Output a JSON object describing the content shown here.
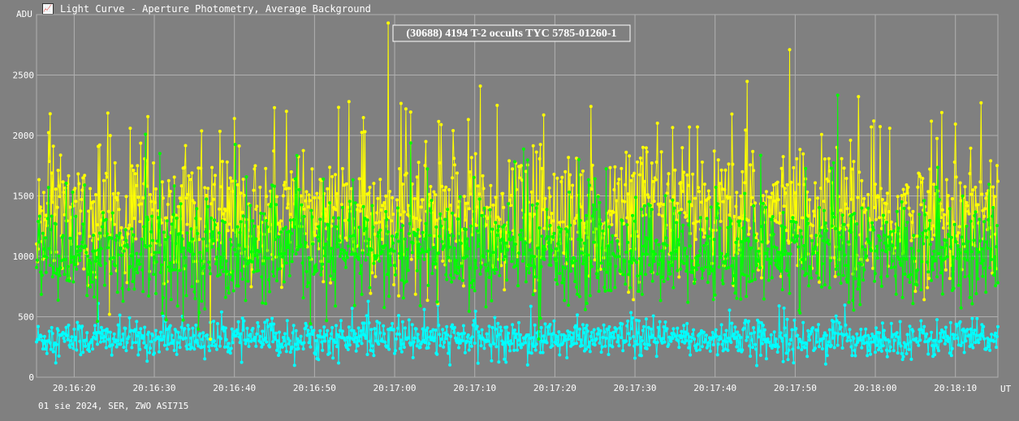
{
  "window": {
    "title": "Light Curve - Aperture Photometry, Average Background",
    "icon": "light-curve-app-icon"
  },
  "footer": {
    "text": "01 sie 2024, SER, ZWO ASI715"
  },
  "colors": {
    "background": "#808080",
    "grid": "#b0b0b0",
    "yellow": "#ffff00",
    "green": "#00ff00",
    "cyan": "#00ffff",
    "text": "#ffffff"
  },
  "chart_data": {
    "type": "line",
    "title": "(30688) 4194 T-2 occults TYC 5785-01260-1",
    "xlabel": "UT",
    "ylabel": "ADU",
    "ylim": [
      0,
      3000
    ],
    "xlim": [
      "20:16:15.3",
      "20:18:15.3"
    ],
    "y_ticks": [
      0,
      500,
      1000,
      1500,
      2000,
      2500
    ],
    "x_ticks": [
      "20:16:20",
      "20:16:30",
      "20:16:40",
      "20:16:50",
      "20:17:00",
      "20:17:10",
      "20:17:20",
      "20:17:30",
      "20:17:40",
      "20:17:50",
      "20:18:00",
      "20:18:10"
    ],
    "grid": true,
    "legend": "none",
    "sample_interval_s": 0.1,
    "series": [
      {
        "color": "#ffff00",
        "mean": 1330,
        "stddev": 270,
        "spikes": [
          {
            "t": "20:16:59.2",
            "value": 2930
          },
          {
            "t": "20:17:49.3",
            "value": 2710
          },
          {
            "t": "20:16:54.3",
            "value": 2280
          },
          {
            "t": "20:18:13.2",
            "value": 2270
          },
          {
            "t": "20:16:45.0",
            "value": 2230
          },
          {
            "t": "20:17:01.4",
            "value": 2220
          },
          {
            "t": "20:17:24.5",
            "value": 2240
          },
          {
            "t": "20:18:08.3",
            "value": 2190
          },
          {
            "t": "20:16:46.5",
            "value": 2200
          },
          {
            "t": "20:17:18.6",
            "value": 2170
          },
          {
            "t": "20:16:40.0",
            "value": 2140
          },
          {
            "t": "20:16:27.0",
            "value": 2060
          },
          {
            "t": "20:17:36.8",
            "value": 2070
          },
          {
            "t": "20:17:07.3",
            "value": 2040
          },
          {
            "t": "20:18:01.8",
            "value": 2060
          }
        ]
      },
      {
        "color": "#00ff00",
        "mean": 1030,
        "stddev": 210,
        "spikes": [
          {
            "t": "20:16:28.9",
            "value": 2010
          },
          {
            "t": "20:16:30.7",
            "value": 1850
          },
          {
            "t": "20:17:23.0",
            "value": 1800
          }
        ]
      },
      {
        "color": "#00ffff",
        "mean": 315,
        "stddev": 75,
        "spikes": [
          {
            "t": "20:16:23.0",
            "value": 610
          },
          {
            "t": "20:17:48.0",
            "value": 590
          }
        ]
      }
    ]
  }
}
